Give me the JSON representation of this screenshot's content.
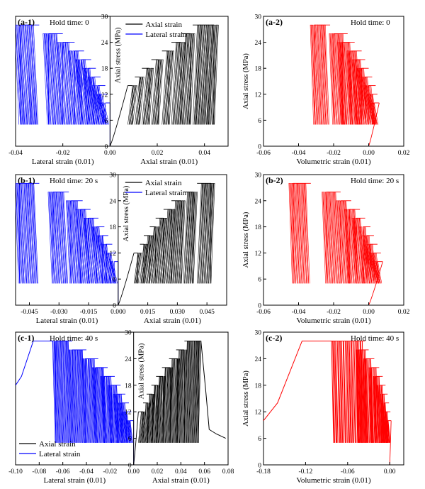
{
  "chart_data": [
    {
      "id": "a-1",
      "type": "line",
      "panel_label": "(a-1)",
      "hold_label": "Hold time: 0",
      "xlabel_left": "Lateral strain (0.01)",
      "xlabel_right": "Axial strain (0.01)",
      "ylabel": "Axial stress (MPa)",
      "xlim": [
        -0.04,
        0.05
      ],
      "xticks": [
        -0.04,
        -0.02,
        0.0,
        0.02,
        0.04
      ],
      "xtick_labels": [
        "-0.04",
        "-0.02",
        "0.00",
        "0.02",
        "0.04"
      ],
      "ylim": [
        0,
        30
      ],
      "yticks": [
        0,
        6,
        12,
        18,
        24,
        30
      ],
      "ytick_labels": [
        "0",
        "6",
        "12",
        "18",
        "24",
        "30"
      ],
      "legend": [
        "Axial strain",
        "Lateral strain"
      ],
      "legend_position": "top-right",
      "series": [
        {
          "name": "Axial strain",
          "color": "#000000",
          "levels": [
            [
              0.0075,
              0.0095,
              14
            ],
            [
              0.0105,
              0.0125,
              16
            ],
            [
              0.0135,
              0.0165,
              18
            ],
            [
              0.0175,
              0.0205,
              20
            ],
            [
              0.022,
              0.025,
              22
            ],
            [
              0.026,
              0.03,
              24
            ],
            [
              0.03,
              0.034,
              26
            ],
            [
              0.035,
              0.044,
              28
            ]
          ]
        },
        {
          "name": "Lateral strain",
          "color": "#0000ff",
          "levels": [
            [
              -0.002,
              0.0,
              10
            ],
            [
              -0.003,
              -0.001,
              12
            ],
            [
              -0.005,
              -0.002,
              14
            ],
            [
              -0.007,
              -0.004,
              16
            ],
            [
              -0.009,
              -0.006,
              18
            ],
            [
              -0.012,
              -0.008,
              20
            ],
            [
              -0.015,
              -0.011,
              22
            ],
            [
              -0.02,
              -0.015,
              24
            ],
            [
              -0.026,
              -0.02,
              26
            ],
            [
              -0.038,
              -0.03,
              28
            ]
          ]
        }
      ]
    },
    {
      "id": "a-2",
      "type": "line",
      "panel_label": "(a-2)",
      "hold_label": "Hold time: 0",
      "xlabel": "Volumetric strain (0.01)",
      "ylabel": "Axial stress (MPa)",
      "xlim": [
        -0.06,
        0.02
      ],
      "xticks": [
        -0.06,
        -0.04,
        -0.02,
        0.0,
        0.02
      ],
      "xtick_labels": [
        "-0.06",
        "-0.04",
        "-0.02",
        "0.00",
        "0.02"
      ],
      "ylim": [
        0,
        30
      ],
      "yticks": [
        0,
        6,
        12,
        18,
        24,
        30
      ],
      "ytick_labels": [
        "0",
        "6",
        "12",
        "18",
        "24",
        "30"
      ],
      "series": [
        {
          "name": "Volumetric strain",
          "color": "#ff0000",
          "levels": [
            [
              0.003,
              0.006,
              10
            ],
            [
              0.002,
              0.005,
              12
            ],
            [
              0.0,
              0.004,
              14
            ],
            [
              -0.002,
              0.002,
              16
            ],
            [
              -0.004,
              0.0,
              18
            ],
            [
              -0.007,
              -0.002,
              20
            ],
            [
              -0.01,
              -0.004,
              22
            ],
            [
              -0.015,
              -0.008,
              24
            ],
            [
              -0.02,
              -0.012,
              26
            ],
            [
              -0.031,
              -0.022,
              28
            ]
          ]
        }
      ]
    },
    {
      "id": "b-1",
      "type": "line",
      "panel_label": "(b-1)",
      "hold_label": "Hold time: 20 s",
      "xlabel_left": "Lateral strain (0.01)",
      "xlabel_right": "Axial strain (0.01)",
      "ylabel": "Axial stress (MPa)",
      "xlim": [
        -0.052,
        0.055
      ],
      "xticks": [
        -0.045,
        -0.03,
        -0.015,
        0.0,
        0.015,
        0.03,
        0.045
      ],
      "xtick_labels": [
        "-0.045",
        "-0.030",
        "-0.015",
        "0.000",
        "0.015",
        "0.030",
        "0.045"
      ],
      "ylim": [
        0,
        30
      ],
      "yticks": [
        0,
        6,
        12,
        18,
        24,
        30
      ],
      "ytick_labels": [
        "0",
        "6",
        "12",
        "18",
        "24",
        "30"
      ],
      "legend": [
        "Axial strain",
        "Lateral strain"
      ],
      "legend_position": "top-right",
      "series": [
        {
          "name": "Axial strain",
          "color": "#000000",
          "levels": [
            [
              0.008,
              0.01,
              12
            ],
            [
              0.011,
              0.013,
              14
            ],
            [
              0.013,
              0.016,
              16
            ],
            [
              0.016,
              0.019,
              18
            ],
            [
              0.019,
              0.023,
              20
            ],
            [
              0.023,
              0.027,
              22
            ],
            [
              0.027,
              0.032,
              24
            ],
            [
              0.033,
              0.038,
              26
            ],
            [
              0.04,
              0.047,
              28
            ]
          ]
        },
        {
          "name": "Lateral strain",
          "color": "#0000ff",
          "levels": [
            [
              -0.002,
              0.0,
              10
            ],
            [
              -0.004,
              -0.001,
              12
            ],
            [
              -0.006,
              -0.003,
              14
            ],
            [
              -0.008,
              -0.005,
              16
            ],
            [
              -0.011,
              -0.007,
              18
            ],
            [
              -0.015,
              -0.01,
              20
            ],
            [
              -0.019,
              -0.014,
              22
            ],
            [
              -0.024,
              -0.018,
              24
            ],
            [
              -0.033,
              -0.025,
              26
            ],
            [
              -0.05,
              -0.04,
              28
            ]
          ]
        }
      ]
    },
    {
      "id": "b-2",
      "type": "line",
      "panel_label": "(b-2)",
      "hold_label": "Hold time: 20 s",
      "xlabel": "Volumetric strain (0.01)",
      "ylabel": "Axial stress (MPa)",
      "xlim": [
        -0.06,
        0.02
      ],
      "xticks": [
        -0.06,
        -0.04,
        -0.02,
        0.0,
        0.02
      ],
      "xtick_labels": [
        "-0.06",
        "-0.04",
        "-0.02",
        "0.00",
        "0.02"
      ],
      "ylim": [
        0,
        30
      ],
      "yticks": [
        0,
        6,
        12,
        18,
        24,
        30
      ],
      "ytick_labels": [
        "0",
        "6",
        "12",
        "18",
        "24",
        "30"
      ],
      "series": [
        {
          "name": "Volumetric strain",
          "color": "#ff0000",
          "levels": [
            [
              0.005,
              0.008,
              10
            ],
            [
              0.003,
              0.007,
              12
            ],
            [
              0.001,
              0.005,
              14
            ],
            [
              -0.001,
              0.003,
              16
            ],
            [
              -0.003,
              0.001,
              18
            ],
            [
              -0.007,
              -0.002,
              20
            ],
            [
              -0.011,
              -0.005,
              22
            ],
            [
              -0.016,
              -0.01,
              24
            ],
            [
              -0.024,
              -0.016,
              26
            ],
            [
              -0.043,
              -0.033,
              28
            ]
          ]
        }
      ]
    },
    {
      "id": "c-1",
      "type": "line",
      "panel_label": "(c-1)",
      "hold_label": "Hold time: 40 s",
      "xlabel_left": "Lateral strain (0.01)",
      "xlabel_right": "Axial strain (0.01)",
      "ylabel": "Axial stress (MPa)",
      "xlim": [
        -0.1,
        0.08
      ],
      "xticks": [
        -0.1,
        -0.08,
        -0.06,
        -0.04,
        -0.02,
        0.0,
        0.02,
        0.04,
        0.06,
        0.08
      ],
      "xtick_labels": [
        "-0.10",
        "-0.08",
        "-0.06",
        "-0.04",
        "-0.02",
        "0.00",
        "0.02",
        "0.04",
        "0.06",
        "0.08"
      ],
      "ylim": [
        0,
        30
      ],
      "yticks": [
        0,
        6,
        12,
        18,
        24,
        30
      ],
      "ytick_labels": [
        "0",
        "6",
        "12",
        "18",
        "24",
        "30"
      ],
      "legend": [
        "Axial strain",
        "Lateral strain"
      ],
      "legend_position": "bottom-left",
      "series": [
        {
          "name": "Axial strain",
          "color": "#000000",
          "levels": [
            [
              0.004,
              0.008,
              12
            ],
            [
              0.008,
              0.012,
              14
            ],
            [
              0.011,
              0.016,
              16
            ],
            [
              0.015,
              0.02,
              18
            ],
            [
              0.019,
              0.025,
              20
            ],
            [
              0.024,
              0.031,
              22
            ],
            [
              0.03,
              0.037,
              24
            ],
            [
              0.036,
              0.043,
              26
            ],
            [
              0.043,
              0.055,
              28
            ]
          ],
          "post_peak": [
            [
              0.055,
              28
            ],
            [
              0.057,
              28
            ],
            [
              0.061,
              17
            ],
            [
              0.064,
              8
            ],
            [
              0.07,
              7
            ],
            [
              0.078,
              6
            ]
          ]
        },
        {
          "name": "Lateral strain",
          "color": "#0000ff",
          "levels": [
            [
              -0.003,
              0.0,
              10
            ],
            [
              -0.006,
              -0.002,
              12
            ],
            [
              -0.01,
              -0.004,
              14
            ],
            [
              -0.014,
              -0.007,
              16
            ],
            [
              -0.019,
              -0.011,
              18
            ],
            [
              -0.025,
              -0.016,
              20
            ],
            [
              -0.032,
              -0.022,
              22
            ],
            [
              -0.041,
              -0.03,
              24
            ],
            [
              -0.052,
              -0.04,
              26
            ],
            [
              -0.066,
              -0.052,
              28
            ]
          ],
          "post_peak": [
            [
              -0.068,
              28
            ],
            [
              -0.085,
              28
            ],
            [
              -0.095,
              20
            ],
            [
              -0.1,
              18
            ]
          ]
        }
      ]
    },
    {
      "id": "c-2",
      "type": "line",
      "panel_label": "(c-2)",
      "hold_label": "Hold time: 40 s",
      "xlabel": "Volumetric strain (0.01)",
      "ylabel": "Axial stress (MPa)",
      "xlim": [
        -0.18,
        0.02
      ],
      "xticks": [
        -0.18,
        -0.12,
        -0.06,
        0.0
      ],
      "xtick_labels": [
        "-0.18",
        "-0.12",
        "-0.06",
        "0.00"
      ],
      "ylim": [
        0,
        30
      ],
      "yticks": [
        0,
        6,
        12,
        18,
        24,
        30
      ],
      "ytick_labels": [
        "0",
        "6",
        "12",
        "18",
        "24",
        "30"
      ],
      "series": [
        {
          "name": "Volumetric strain",
          "color": "#ff0000",
          "levels": [
            [
              -0.003,
              0.002,
              10
            ],
            [
              -0.005,
              0.001,
              12
            ],
            [
              -0.008,
              -0.001,
              14
            ],
            [
              -0.011,
              -0.003,
              16
            ],
            [
              -0.015,
              -0.006,
              18
            ],
            [
              -0.02,
              -0.01,
              20
            ],
            [
              -0.026,
              -0.015,
              22
            ],
            [
              -0.034,
              -0.022,
              24
            ],
            [
              -0.045,
              -0.03,
              26
            ],
            [
              -0.08,
              -0.035,
              28
            ]
          ],
          "post_peak": [
            [
              -0.08,
              28
            ],
            [
              -0.125,
              28
            ],
            [
              -0.16,
              14
            ],
            [
              -0.18,
              10
            ]
          ]
        }
      ]
    }
  ]
}
